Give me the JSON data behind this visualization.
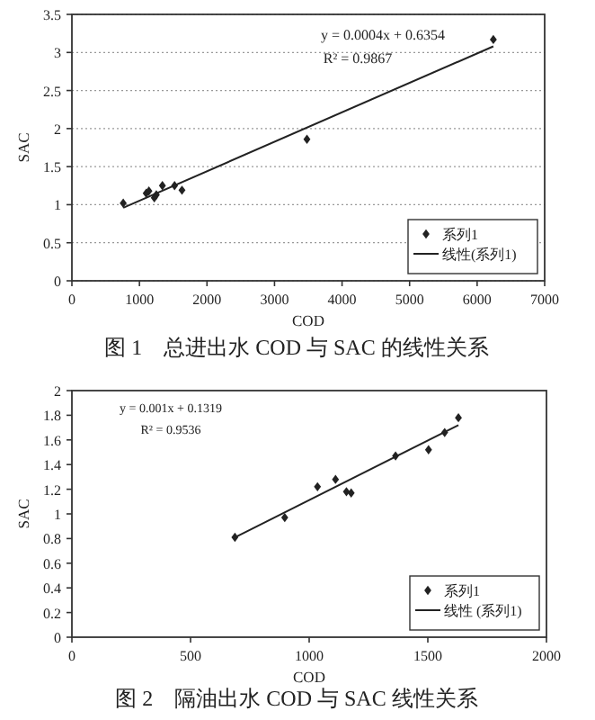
{
  "chart_data": [
    {
      "type": "scatter",
      "title": "图 1　总进出水 COD 与 SAC 的线性关系",
      "xlabel": "COD",
      "ylabel": "SAC",
      "annotations": [
        "y = 0.0004x + 0.6354",
        "R² = 0.9867"
      ],
      "xlim": [
        0,
        7000
      ],
      "ylim": [
        0,
        3.5
      ],
      "xticks": [
        0,
        1000,
        2000,
        3000,
        4000,
        5000,
        6000,
        7000
      ],
      "yticks": [
        0,
        0.5,
        1,
        1.5,
        2,
        2.5,
        3,
        3.5
      ],
      "grid": "y",
      "legend": "bottom right",
      "series": [
        {
          "name": "系列1",
          "marker": "diamond",
          "color": "#222222",
          "x": [
            760,
            1100,
            1140,
            1220,
            1250,
            1340,
            1520,
            1630,
            3480,
            6240
          ],
          "values": [
            1.02,
            1.15,
            1.18,
            1.09,
            1.13,
            1.25,
            1.25,
            1.19,
            1.86,
            3.17
          ]
        },
        {
          "name": "线性(系列1)",
          "type": "line",
          "color": "#222222",
          "x": [
            760,
            6240
          ],
          "values": [
            0.96,
            3.08
          ]
        }
      ]
    },
    {
      "type": "scatter",
      "title": "图 2　隔油出水 COD 与 SAC 线性关系",
      "xlabel": "COD",
      "ylabel": "SAC",
      "annotations": [
        "y = 0.001x + 0.1319",
        "R² = 0.9536"
      ],
      "xlim": [
        0,
        2000
      ],
      "ylim": [
        0,
        2
      ],
      "xticks": [
        0,
        500,
        1000,
        1500,
        2000
      ],
      "yticks": [
        0,
        0.2,
        0.4,
        0.6,
        0.8,
        1,
        1.2,
        1.4,
        1.6,
        1.8,
        2
      ],
      "legend": "bottom right",
      "series": [
        {
          "name": "系列1",
          "marker": "diamond",
          "color": "#222222",
          "x": [
            687,
            897,
            1035,
            1111,
            1157,
            1177,
            1364,
            1503,
            1571,
            1629
          ],
          "values": [
            0.81,
            0.97,
            1.22,
            1.28,
            1.18,
            1.17,
            1.47,
            1.52,
            1.66,
            1.78
          ]
        },
        {
          "name": "线性 (系列1)",
          "type": "line",
          "color": "#222222",
          "x": [
            687,
            1629
          ],
          "values": [
            0.81,
            1.72
          ]
        }
      ]
    }
  ]
}
